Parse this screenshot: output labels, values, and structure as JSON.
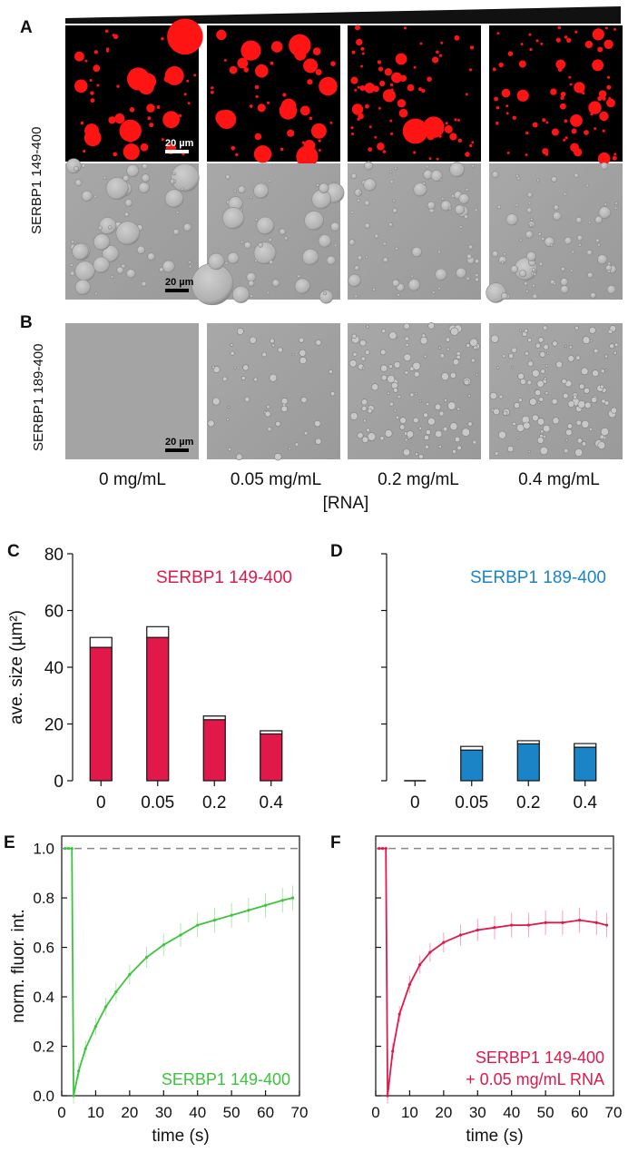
{
  "panel_labels": {
    "a": "A",
    "b": "B",
    "c": "C",
    "d": "D",
    "e": "E",
    "f": "F"
  },
  "row_labels": {
    "a": "SERBP1 149-400",
    "b": "SERBP1 189-400"
  },
  "scale_bar": "20 µm",
  "concentrations": [
    "0 mg/mL",
    "0.05 mg/mL",
    "0.2 mg/mL",
    "0.4 mg/mL"
  ],
  "conc_axis_label": "[RNA]",
  "colors": {
    "red": "#e0194a",
    "blue": "#1b84c6",
    "green": "#3cc43c",
    "fluor": "#ff1111"
  },
  "chart_data": [
    {
      "type": "bar",
      "panel": "C",
      "annotation": "SERBP1 149-400",
      "categories": [
        "0",
        "0.05",
        "0.2",
        "0.4"
      ],
      "values": [
        47,
        50.5,
        21.5,
        16.5
      ],
      "errors": [
        3.5,
        3.8,
        1.3,
        1.1
      ],
      "xlabel": "[RNA] (mg/mL)",
      "ylabel": "ave. size (µm²)",
      "ylim": [
        0,
        80
      ],
      "yticks": [
        0,
        20,
        40,
        60,
        80
      ]
    },
    {
      "type": "bar",
      "panel": "D",
      "annotation": "SERBP1 189-400",
      "categories": [
        "0",
        "0.05",
        "0.2",
        "0.4"
      ],
      "values": [
        0,
        10.8,
        13,
        11.8
      ],
      "errors": [
        0,
        1.3,
        1.1,
        1.3
      ],
      "xlabel": "[RNA] (mg/mL)",
      "ylabel": "",
      "ylim": [
        0,
        80
      ],
      "yticks": [
        0,
        20,
        40,
        60,
        80
      ]
    },
    {
      "type": "line",
      "panel": "E",
      "annotation": [
        "SERBP1 149-400"
      ],
      "xlabel": "time (s)",
      "ylabel": "norm. fluor. int.",
      "xlim": [
        0,
        70
      ],
      "ylim": [
        0,
        1.05
      ],
      "xticks": [
        0,
        10,
        20,
        30,
        40,
        50,
        60,
        70
      ],
      "yticks": [
        0,
        0.2,
        0.4,
        0.6,
        0.8,
        1.0
      ],
      "reference_line": 1.0,
      "x": [
        1,
        2,
        3,
        3.5,
        5,
        7,
        10,
        13,
        16,
        20,
        25,
        30,
        35,
        40,
        45,
        50,
        55,
        60,
        65,
        68
      ],
      "y": [
        1.0,
        1.0,
        1.0,
        0.0,
        0.1,
        0.19,
        0.28,
        0.36,
        0.42,
        0.49,
        0.56,
        0.61,
        0.65,
        0.69,
        0.71,
        0.73,
        0.75,
        0.77,
        0.79,
        0.8
      ]
    },
    {
      "type": "line",
      "panel": "F",
      "annotation": [
        "SERBP1 149-400",
        "+ 0.05 mg/mL RNA"
      ],
      "xlabel": "time (s)",
      "ylabel": "",
      "xlim": [
        0,
        70
      ],
      "ylim": [
        0,
        1.05
      ],
      "xticks": [
        0,
        10,
        20,
        30,
        40,
        50,
        60,
        70
      ],
      "yticks": [
        0,
        0.2,
        0.4,
        0.6,
        0.8,
        1.0
      ],
      "reference_line": 1.0,
      "x": [
        1,
        2,
        3,
        3.5,
        5,
        7,
        10,
        13,
        16,
        20,
        25,
        30,
        35,
        40,
        45,
        50,
        55,
        60,
        65,
        68
      ],
      "y": [
        1.0,
        1.0,
        1.0,
        0.0,
        0.18,
        0.33,
        0.45,
        0.53,
        0.58,
        0.62,
        0.65,
        0.67,
        0.68,
        0.69,
        0.69,
        0.7,
        0.7,
        0.71,
        0.7,
        0.69
      ]
    }
  ]
}
